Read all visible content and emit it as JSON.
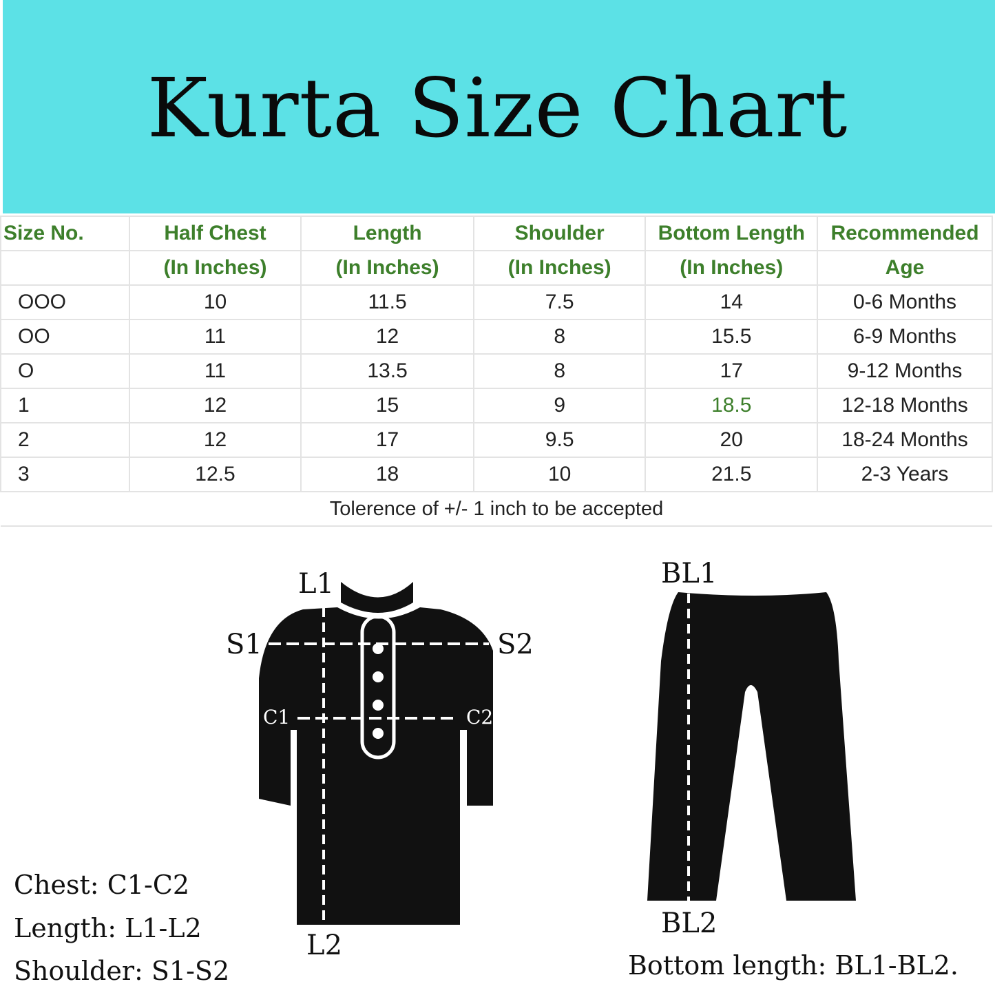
{
  "title": "Kurta Size Chart",
  "table": {
    "header_row1": [
      "Size No.",
      "Half Chest",
      "Length",
      "Shoulder",
      "Bottom Length",
      "Recommended"
    ],
    "header_row2": [
      "",
      "(In Inches)",
      "(In Inches)",
      "(In Inches)",
      "(In Inches)",
      "Age"
    ],
    "rows": [
      [
        "OOO",
        "10",
        "11.5",
        "7.5",
        "14",
        "0-6 Months"
      ],
      [
        "OO",
        "11",
        "12",
        "8",
        "15.5",
        "6-9 Months"
      ],
      [
        "O",
        "11",
        "13.5",
        "8",
        "17",
        "9-12 Months"
      ],
      [
        "1",
        "12",
        "15",
        "9",
        "18.5",
        "12-18 Months"
      ],
      [
        "2",
        "12",
        "17",
        "9.5",
        "20",
        "18-24 Months"
      ],
      [
        "3",
        "12.5",
        "18",
        "10",
        "21.5",
        "2-3 Years"
      ]
    ],
    "note": "Tolerence of +/- 1 inch to be accepted"
  },
  "kurta_labels": {
    "l1": "L1",
    "l2": "L2",
    "s1": "S1",
    "s2": "S2",
    "c1": "C1",
    "c2": "C2"
  },
  "pants_labels": {
    "bl1": "BL1",
    "bl2": "BL2"
  },
  "legend": {
    "chest": "Chest: C1-C2",
    "length": "Length: L1-L2",
    "shoulder": "Shoulder: S1-S2",
    "bottom": "Bottom length: BL1-BL2."
  },
  "colors": {
    "banner": "#5ce1e6",
    "header_text": "#3d7f2b"
  }
}
